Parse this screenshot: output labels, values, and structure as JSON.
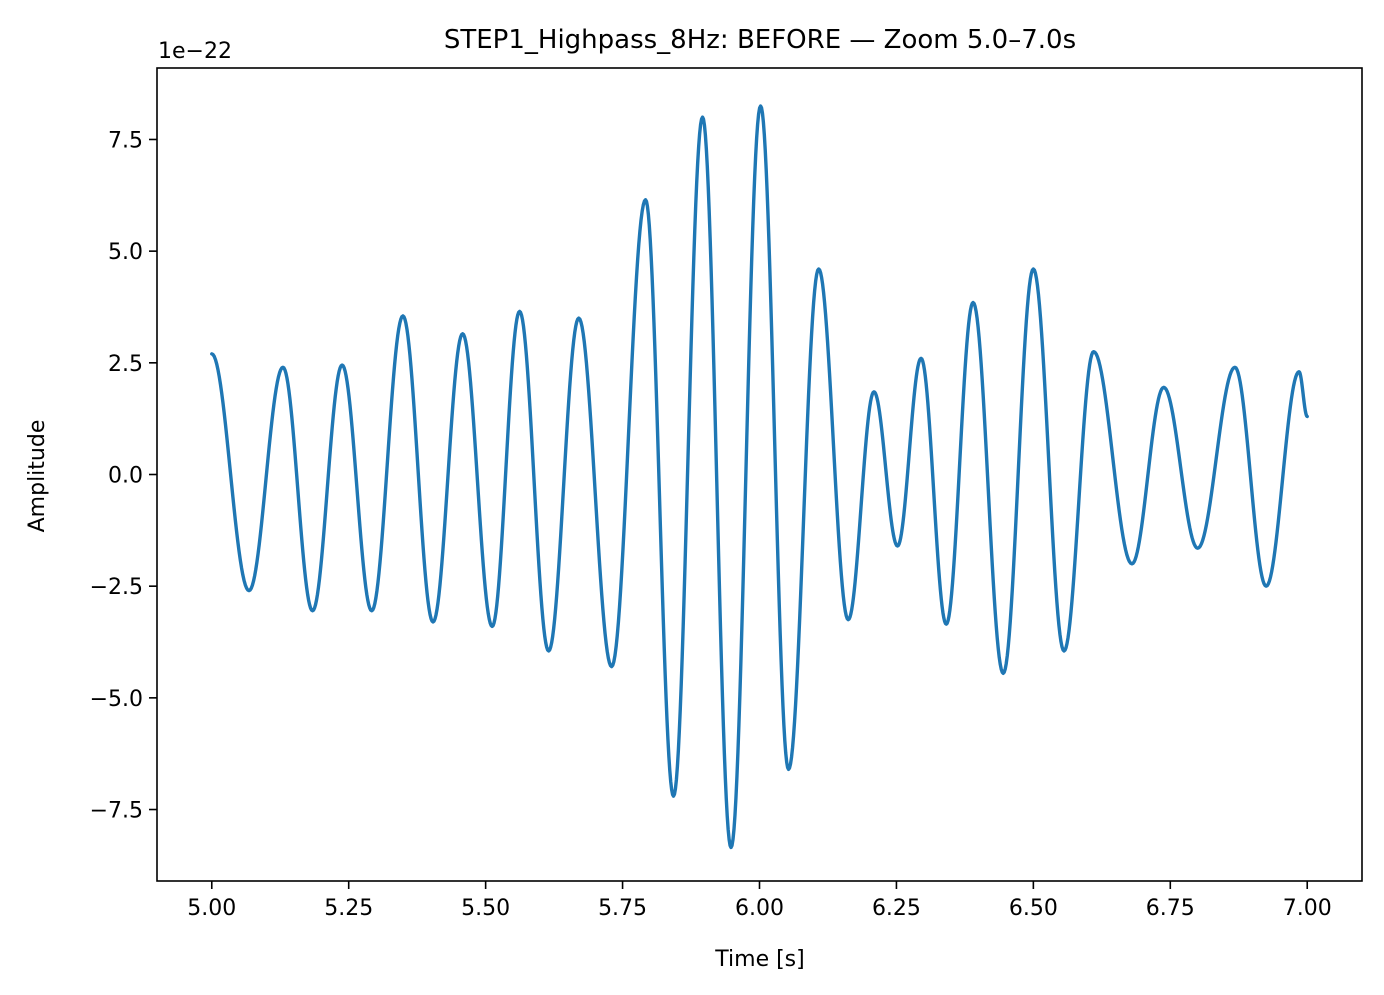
{
  "chart_data": {
    "type": "line",
    "title": "STEP1_Highpass_8Hz: BEFORE — Zoom 5.0–7.0s",
    "xlabel": "Time [s]",
    "ylabel": "Amplitude",
    "y_offset_text": "1e−22",
    "xlim": [
      4.9,
      7.1
    ],
    "ylim": [
      -9.1,
      9.1
    ],
    "x_ticks": [
      5.0,
      5.25,
      5.5,
      5.75,
      6.0,
      6.25,
      6.5,
      6.75,
      7.0
    ],
    "x_tick_labels": [
      "5.00",
      "5.25",
      "5.50",
      "5.75",
      "6.00",
      "6.25",
      "6.50",
      "6.75",
      "7.00"
    ],
    "y_ticks": [
      -7.5,
      -5.0,
      -2.5,
      0.0,
      2.5,
      5.0,
      7.5
    ],
    "y_tick_labels": [
      "−7.5",
      "−5.0",
      "−2.5",
      "0.0",
      "2.5",
      "5.0",
      "7.5"
    ],
    "grid": false,
    "line_color": "#1f77b4",
    "series": [
      {
        "name": "",
        "extrema": [
          [
            5.0,
            2.7
          ],
          [
            5.068,
            -2.6
          ],
          [
            5.13,
            2.4
          ],
          [
            5.184,
            -3.05
          ],
          [
            5.238,
            2.45
          ],
          [
            5.292,
            -3.05
          ],
          [
            5.349,
            3.55
          ],
          [
            5.404,
            -3.3
          ],
          [
            5.458,
            3.15
          ],
          [
            5.512,
            -3.4
          ],
          [
            5.562,
            3.65
          ],
          [
            5.615,
            -3.95
          ],
          [
            5.67,
            3.5
          ],
          [
            5.73,
            -4.3
          ],
          [
            5.792,
            6.15
          ],
          [
            5.843,
            -7.2
          ],
          [
            5.896,
            8.0
          ],
          [
            5.948,
            -8.35
          ],
          [
            6.002,
            8.25
          ],
          [
            6.053,
            -6.6
          ],
          [
            6.108,
            4.6
          ],
          [
            6.162,
            -3.25
          ],
          [
            6.209,
            1.85
          ],
          [
            6.252,
            -1.6
          ],
          [
            6.295,
            2.6
          ],
          [
            6.341,
            -3.35
          ],
          [
            6.39,
            3.85
          ],
          [
            6.445,
            -4.45
          ],
          [
            6.5,
            4.6
          ],
          [
            6.556,
            -3.95
          ],
          [
            6.61,
            2.75
          ],
          [
            6.68,
            -2.0
          ],
          [
            6.738,
            1.95
          ],
          [
            6.8,
            -1.65
          ],
          [
            6.868,
            2.4
          ],
          [
            6.925,
            -2.5
          ],
          [
            6.985,
            2.3
          ],
          [
            7.0,
            1.3
          ]
        ]
      }
    ]
  }
}
